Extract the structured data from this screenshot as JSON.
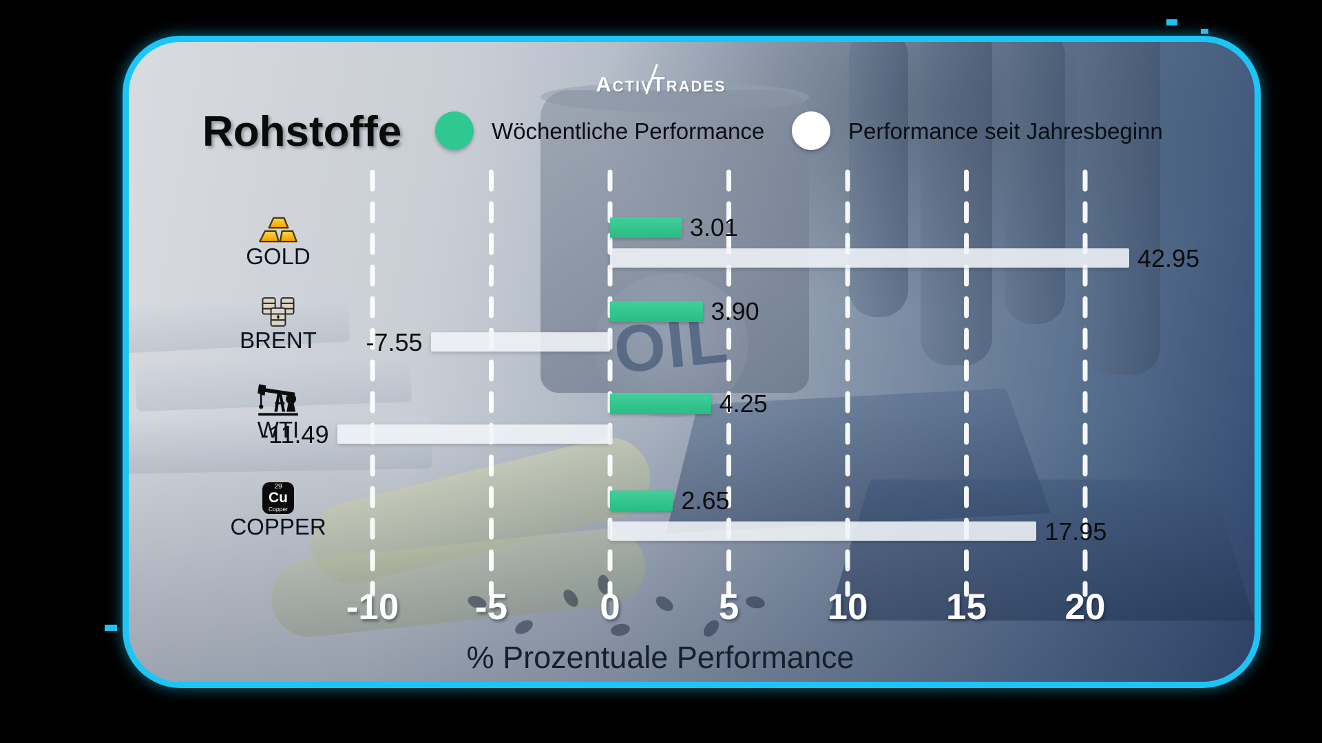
{
  "brand": {
    "word1": "Activ",
    "word2": "Trades"
  },
  "header": {
    "title": "Rohstoffe"
  },
  "legend": {
    "weekly": {
      "label": "Wöchentliche Performance",
      "color": "#2fc792"
    },
    "ytd": {
      "label": "Performance seit Jahresbeginn",
      "color": "#ffffff"
    }
  },
  "background": {
    "oil_text": "OIL"
  },
  "chart_data": {
    "type": "bar",
    "orientation": "horizontal",
    "title": "Rohstoffe",
    "categories": [
      "GOLD",
      "BRENT",
      "WTI",
      "COPPER"
    ],
    "series": [
      {
        "name": "Wöchentliche Performance",
        "color": "#2fc792",
        "values": [
          3.01,
          3.9,
          4.25,
          2.65
        ]
      },
      {
        "name": "Performance seit Jahresbeginn",
        "color": "#ffffff",
        "values": [
          42.95,
          -7.55,
          -11.49,
          17.95
        ]
      }
    ],
    "xlabel": "% Prozentuale Performance",
    "x_ticks": [
      -10,
      -5,
      0,
      5,
      10,
      15,
      20
    ],
    "xlim": [
      -15,
      25
    ],
    "grid": "vertical-dashed-white",
    "legend_position": "top",
    "note": "GOLD year-to-date bar is clipped at the right card edge"
  },
  "rows": [
    {
      "category": "GOLD",
      "icon": "gold-bars-icon",
      "weekly_label": "3.01",
      "ytd_label": "42.95"
    },
    {
      "category": "BRENT",
      "icon": "oil-barrels-icon",
      "weekly_label": "3.90",
      "ytd_label": "-7.55"
    },
    {
      "category": "WTI",
      "icon": "oil-pump-icon",
      "weekly_label": "4.25",
      "ytd_label": "-11.49"
    },
    {
      "category": "COPPER",
      "icon": "copper-element-icon",
      "weekly_label": "2.65",
      "ytd_label": "17.95"
    }
  ],
  "copper_tile": {
    "number": "29",
    "symbol": "Cu",
    "name": "Copper"
  }
}
